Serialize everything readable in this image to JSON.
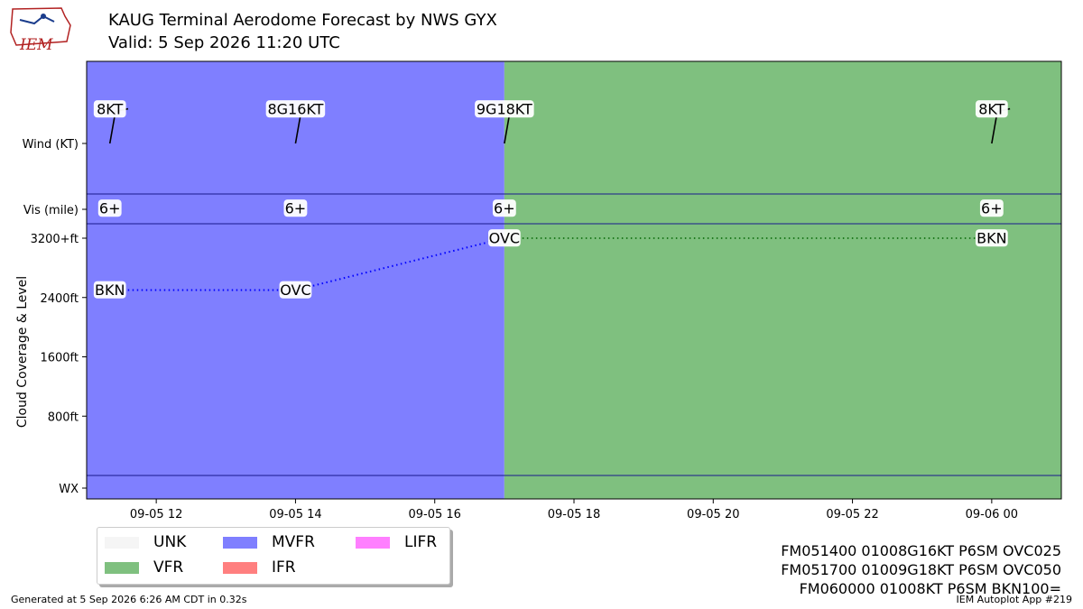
{
  "header": {
    "title": "KAUG Terminal Aerodome Forecast by NWS GYX",
    "valid": "Valid: 5 Sep 2026 11:20 UTC"
  },
  "logo": {
    "text": "IEM"
  },
  "footer": {
    "generated": "Generated at 5 Sep 2026 6:26 AM CDT in 0.32s",
    "app": "IEM Autoplot App #219"
  },
  "taf_lines": [
    "FM051400 01008G16KT P6SM OVC025",
    "FM051700 01009G18KT P6SM OVC050",
    "FM060000 01008KT P6SM BKN100="
  ],
  "legend": [
    {
      "label": "UNK",
      "color": "#f5f5f5"
    },
    {
      "label": "VFR",
      "color": "#7fc07f"
    },
    {
      "label": "MVFR",
      "color": "#7f7fff"
    },
    {
      "label": "IFR",
      "color": "#ff7f7f"
    },
    {
      "label": "LIFR",
      "color": "#ff7fff"
    }
  ],
  "chart_data": {
    "type": "area",
    "x_range": [
      "2026-09-05 11:00",
      "2026-09-06 01:00"
    ],
    "xticks": [
      {
        "time": "2026-09-05 12:00",
        "label": "09-05 12"
      },
      {
        "time": "2026-09-05 14:00",
        "label": "09-05 14"
      },
      {
        "time": "2026-09-05 16:00",
        "label": "09-05 16"
      },
      {
        "time": "2026-09-05 18:00",
        "label": "09-05 18"
      },
      {
        "time": "2026-09-05 20:00",
        "label": "09-05 20"
      },
      {
        "time": "2026-09-05 22:00",
        "label": "09-05 22"
      },
      {
        "time": "2026-09-06 00:00",
        "label": "09-06 00"
      }
    ],
    "ylabel": "Cloud Coverage & Level",
    "row_labels": {
      "wind": "Wind (KT)",
      "vis": "Vis (mile)",
      "wx": "WX"
    },
    "cloud_levels": [
      {
        "ft": 800,
        "label": "800ft"
      },
      {
        "ft": 1600,
        "label": "1600ft"
      },
      {
        "ft": 2400,
        "label": "2400ft"
      },
      {
        "ft": 3200,
        "label": "3200+ft"
      }
    ],
    "flight_category_periods": [
      {
        "start": "2026-09-05 11:00",
        "end": "2026-09-05 17:00",
        "category": "MVFR",
        "color": "#7f7fff"
      },
      {
        "start": "2026-09-05 17:00",
        "end": "2026-09-06 01:00",
        "category": "VFR",
        "color": "#7fc07f"
      }
    ],
    "forecasts": [
      {
        "time": "2026-09-05 11:20",
        "wind_dir": 10,
        "wind_label": "8KT",
        "vis": "6+",
        "cloud": "BKN",
        "cloud_ft": 2500,
        "series_color": "#0000ff"
      },
      {
        "time": "2026-09-05 14:00",
        "wind_dir": 10,
        "wind_label": "8G16KT",
        "vis": "6+",
        "cloud": "OVC",
        "cloud_ft": 2500,
        "series_color": "#0000ff"
      },
      {
        "time": "2026-09-05 17:00",
        "wind_dir": 10,
        "wind_label": "9G18KT",
        "vis": "6+",
        "cloud": "OVC",
        "cloud_ft": 3200,
        "series_color": "#1f7a1f"
      },
      {
        "time": "2026-09-06 00:00",
        "wind_dir": 10,
        "wind_label": "8KT",
        "vis": "6+",
        "cloud": "BKN",
        "cloud_ft": 3200,
        "series_color": "#1f7a1f"
      }
    ]
  }
}
